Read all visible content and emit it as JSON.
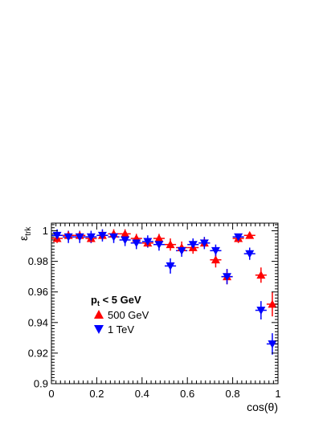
{
  "chart_data": {
    "type": "scatter",
    "title": "",
    "xlabel": "cos(θ)",
    "ylabel_main": "ε",
    "ylabel_sub": "trk",
    "xlim": [
      0,
      1
    ],
    "ylim": [
      0.9,
      1.005
    ],
    "x_ticks": [
      0,
      0.2,
      0.4,
      0.6,
      0.8,
      1
    ],
    "x_tick_labels": [
      "0",
      "0.2",
      "0.4",
      "0.6",
      "0.8",
      "1"
    ],
    "y_ticks": [
      0.9,
      0.92,
      0.94,
      0.96,
      0.98,
      1
    ],
    "y_tick_labels": [
      "0.9",
      "0.92",
      "0.94",
      "0.96",
      "0.98",
      "1"
    ],
    "legend": {
      "placement": "center-left",
      "header_main": "p",
      "header_sub": "t",
      "header_rest": " < 5 GeV"
    },
    "bin_half_width": 0.025,
    "series": [
      {
        "name": "500 GeV",
        "marker": "triangle-up",
        "color": "#ff0000",
        "points": [
          {
            "x": 0.025,
            "y": 0.995,
            "err": 0.003
          },
          {
            "x": 0.075,
            "y": 0.997,
            "err": 0.003
          },
          {
            "x": 0.125,
            "y": 0.997,
            "err": 0.003
          },
          {
            "x": 0.175,
            "y": 0.995,
            "err": 0.003
          },
          {
            "x": 0.225,
            "y": 0.997,
            "err": 0.003
          },
          {
            "x": 0.275,
            "y": 0.998,
            "err": 0.003
          },
          {
            "x": 0.325,
            "y": 0.998,
            "err": 0.003
          },
          {
            "x": 0.375,
            "y": 0.995,
            "err": 0.003
          },
          {
            "x": 0.425,
            "y": 0.992,
            "err": 0.003
          },
          {
            "x": 0.475,
            "y": 0.995,
            "err": 0.003
          },
          {
            "x": 0.525,
            "y": 0.991,
            "err": 0.004
          },
          {
            "x": 0.575,
            "y": 0.989,
            "err": 0.004
          },
          {
            "x": 0.625,
            "y": 0.989,
            "err": 0.004
          },
          {
            "x": 0.675,
            "y": 0.992,
            "err": 0.003
          },
          {
            "x": 0.725,
            "y": 0.981,
            "err": 0.005
          },
          {
            "x": 0.775,
            "y": 0.97,
            "err": 0.005
          },
          {
            "x": 0.825,
            "y": 0.995,
            "err": 0.003
          },
          {
            "x": 0.875,
            "y": 0.997,
            "err": 0.002
          },
          {
            "x": 0.925,
            "y": 0.971,
            "err": 0.005
          },
          {
            "x": 0.975,
            "y": 0.952,
            "err": 0.008
          }
        ]
      },
      {
        "name": "1 TeV",
        "marker": "triangle-down",
        "color": "#0000ff",
        "points": [
          {
            "x": 0.025,
            "y": 0.997,
            "err": 0.004
          },
          {
            "x": 0.075,
            "y": 0.996,
            "err": 0.004
          },
          {
            "x": 0.125,
            "y": 0.996,
            "err": 0.004
          },
          {
            "x": 0.175,
            "y": 0.996,
            "err": 0.004
          },
          {
            "x": 0.225,
            "y": 0.997,
            "err": 0.004
          },
          {
            "x": 0.275,
            "y": 0.996,
            "err": 0.004
          },
          {
            "x": 0.325,
            "y": 0.994,
            "err": 0.004
          },
          {
            "x": 0.375,
            "y": 0.992,
            "err": 0.004
          },
          {
            "x": 0.425,
            "y": 0.993,
            "err": 0.004
          },
          {
            "x": 0.475,
            "y": 0.991,
            "err": 0.004
          },
          {
            "x": 0.525,
            "y": 0.977,
            "err": 0.005
          },
          {
            "x": 0.575,
            "y": 0.987,
            "err": 0.004
          },
          {
            "x": 0.625,
            "y": 0.991,
            "err": 0.004
          },
          {
            "x": 0.675,
            "y": 0.992,
            "err": 0.004
          },
          {
            "x": 0.725,
            "y": 0.987,
            "err": 0.004
          },
          {
            "x": 0.775,
            "y": 0.97,
            "err": 0.005
          },
          {
            "x": 0.825,
            "y": 0.996,
            "err": 0.002
          },
          {
            "x": 0.875,
            "y": 0.985,
            "err": 0.004
          },
          {
            "x": 0.925,
            "y": 0.948,
            "err": 0.006
          },
          {
            "x": 0.975,
            "y": 0.926,
            "err": 0.007
          }
        ]
      }
    ]
  }
}
